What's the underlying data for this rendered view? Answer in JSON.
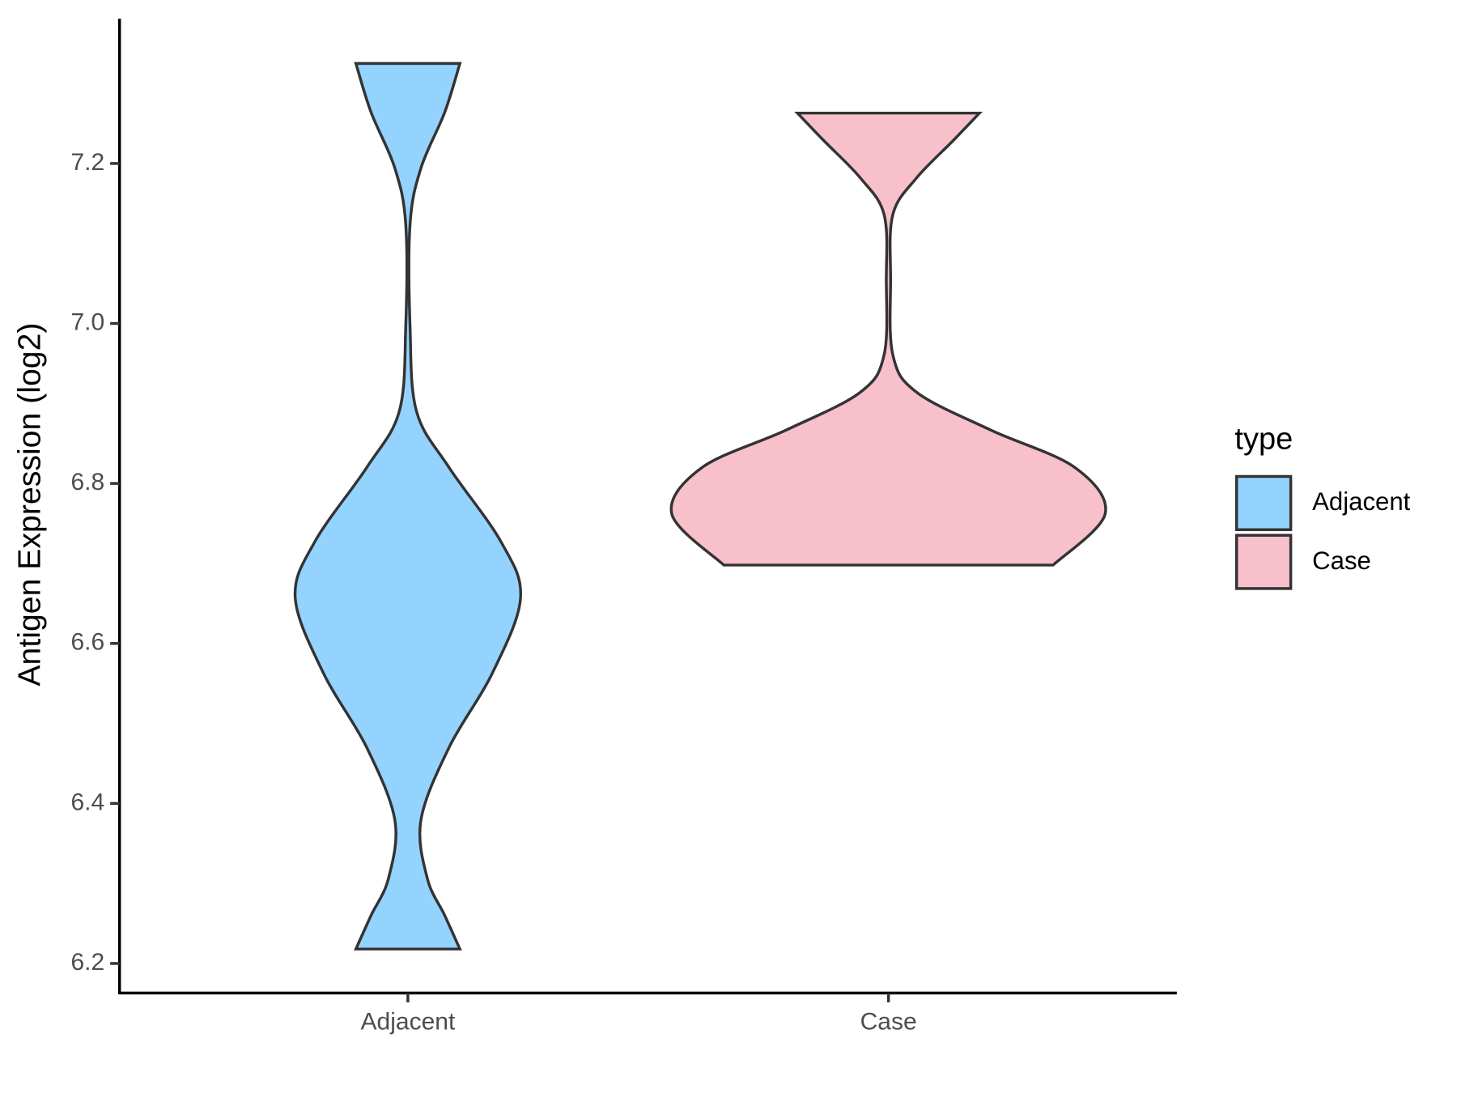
{
  "chart_data": {
    "type": "violin",
    "y_label": "Antigen Expression (log2)",
    "categories": [
      "Adjacent",
      "Case"
    ],
    "legend_title": "type",
    "ylim": [
      6.163,
      7.381
    ],
    "yticks": [
      {
        "value": 6.2,
        "label": "6.2"
      },
      {
        "value": 6.4,
        "label": "6.4"
      },
      {
        "value": 6.6,
        "label": "6.6"
      },
      {
        "value": 6.8,
        "label": "6.8"
      },
      {
        "value": 7.0,
        "label": "7.0"
      },
      {
        "value": 7.2,
        "label": "7.2"
      }
    ],
    "series": [
      {
        "name": "Adjacent",
        "color": "#93d3fe",
        "y": [
          6.218,
          6.26,
          6.306,
          6.379,
          6.47,
          6.563,
          6.657,
          6.727,
          6.82,
          6.89,
          6.996,
          7.124,
          7.194,
          7.264,
          7.325
        ],
        "density": [
          0.24,
          0.17,
          0.09,
          0.06,
          0.19,
          0.39,
          0.52,
          0.43,
          0.19,
          0.04,
          0.01,
          0.01,
          0.06,
          0.17,
          0.24
        ]
      },
      {
        "name": "Case",
        "color": "#f8c0cb",
        "y": [
          6.698,
          6.762,
          6.82,
          6.867,
          6.914,
          6.961,
          7.055,
          7.136,
          7.182,
          7.229,
          7.263
        ],
        "density": [
          0.76,
          1,
          0.86,
          0.47,
          0.13,
          0.02,
          0.01,
          0.02,
          0.13,
          0.3,
          0.42
        ]
      }
    ]
  }
}
